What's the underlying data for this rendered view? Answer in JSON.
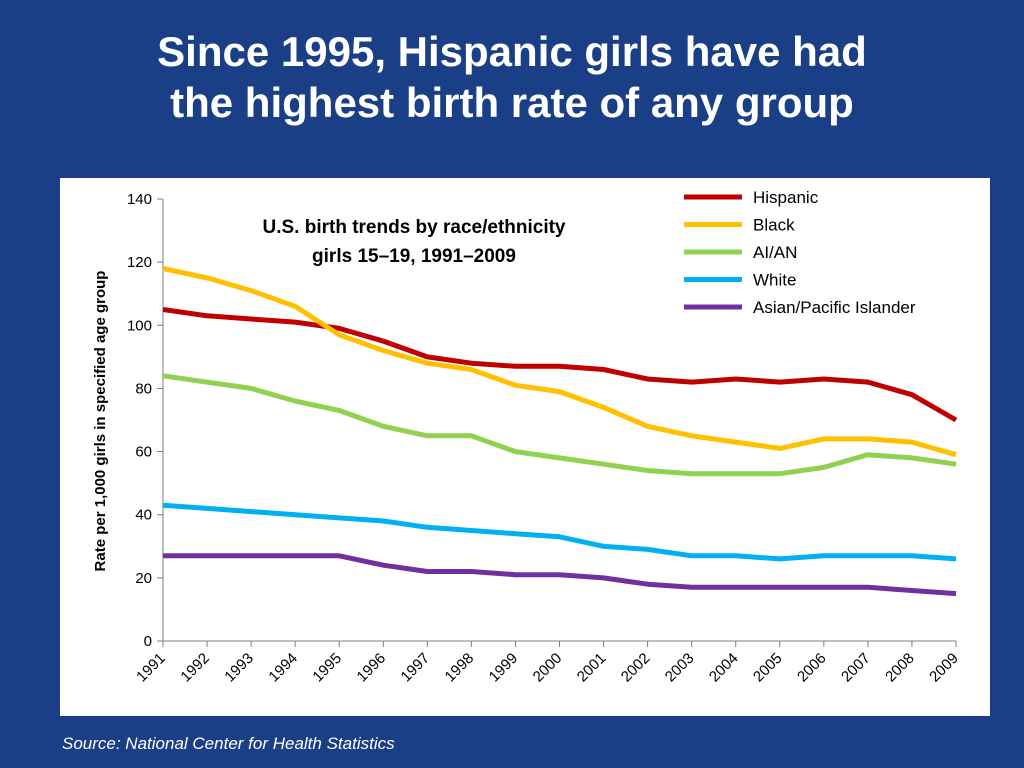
{
  "slide": {
    "title_line1": "Since 1995, Hispanic girls have had",
    "title_line2": "the highest birth rate of any group",
    "source": "Source: National Center for Health Statistics"
  },
  "chart_data": {
    "type": "line",
    "title_line1": "U.S. birth trends by race/ethnicity",
    "title_line2": "girls 15–19, 1991–2009",
    "xlabel": "",
    "ylabel": "Rate per 1,000 girls in specified age group",
    "ylim": [
      0,
      140
    ],
    "yticks": [
      0,
      20,
      40,
      60,
      80,
      100,
      120,
      140
    ],
    "grid": false,
    "legend_position": "top-right",
    "x": [
      "1991",
      "1992",
      "1993",
      "1994",
      "1995",
      "1996",
      "1997",
      "1998",
      "1999",
      "2000",
      "2001",
      "2002",
      "2003",
      "2004",
      "2005",
      "2006",
      "2007",
      "2008",
      "2009"
    ],
    "series": [
      {
        "name": "Hispanic",
        "color": "#c00000",
        "values": [
          105,
          103,
          102,
          101,
          99,
          95,
          90,
          88,
          87,
          87,
          86,
          83,
          82,
          83,
          82,
          83,
          82,
          78,
          70
        ]
      },
      {
        "name": "Black",
        "color": "#ffc000",
        "values": [
          118,
          115,
          111,
          106,
          97,
          92,
          88,
          86,
          81,
          79,
          74,
          68,
          65,
          63,
          61,
          64,
          64,
          63,
          59
        ]
      },
      {
        "name": "AI/AN",
        "color": "#92d050",
        "values": [
          84,
          82,
          80,
          76,
          73,
          68,
          65,
          65,
          60,
          58,
          56,
          54,
          53,
          53,
          53,
          55,
          59,
          58,
          56
        ]
      },
      {
        "name": "White",
        "color": "#00b0f0",
        "values": [
          43,
          42,
          41,
          40,
          39,
          38,
          36,
          35,
          34,
          33,
          30,
          29,
          27,
          27,
          26,
          27,
          27,
          27,
          26
        ]
      },
      {
        "name": "Asian/Pacific Islander",
        "color": "#7030a0",
        "values": [
          27,
          27,
          27,
          27,
          27,
          24,
          22,
          22,
          21,
          21,
          20,
          18,
          17,
          17,
          17,
          17,
          17,
          16,
          15
        ]
      }
    ]
  }
}
